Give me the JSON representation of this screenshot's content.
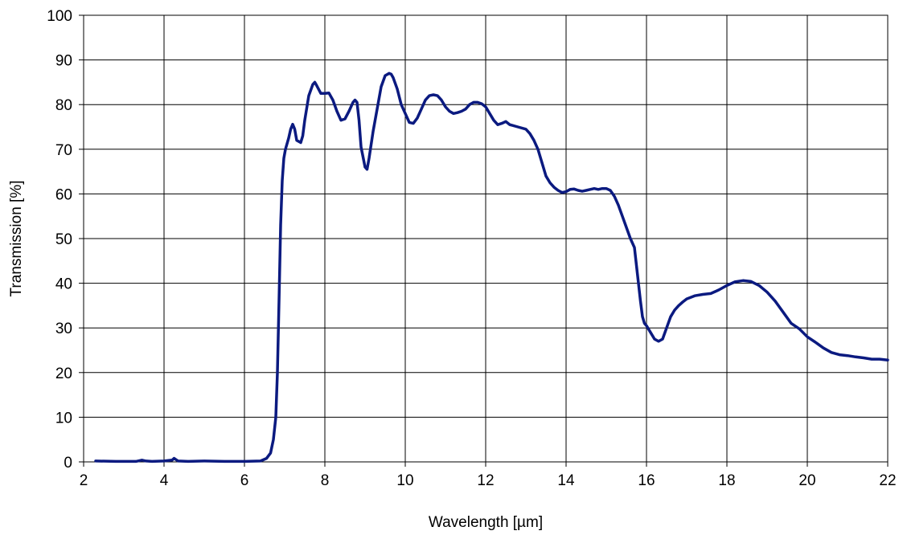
{
  "chart_data": {
    "type": "line",
    "title": "",
    "xlabel": "Wavelength [µm]",
    "ylabel": "Transmission [%]",
    "xlim": [
      2,
      22
    ],
    "ylim": [
      0,
      100
    ],
    "xticks": [
      2,
      4,
      6,
      8,
      10,
      12,
      14,
      16,
      18,
      20,
      22
    ],
    "yticks": [
      0,
      10,
      20,
      30,
      40,
      50,
      60,
      70,
      80,
      90,
      100
    ],
    "grid": true,
    "legend": "none",
    "line_color": "#0b1a80",
    "series": [
      {
        "x": [
          2.3,
          2.8,
          3.3,
          3.45,
          3.55,
          3.7,
          4.0,
          4.2,
          4.25,
          4.35,
          4.6,
          5.0,
          5.5,
          6.0,
          6.4,
          6.55,
          6.65,
          6.72,
          6.78,
          6.82,
          6.86,
          6.9,
          6.94,
          6.98,
          7.02,
          7.1,
          7.15,
          7.2,
          7.25,
          7.3,
          7.4,
          7.45,
          7.5,
          7.6,
          7.7,
          7.75,
          7.8,
          7.9,
          8.0,
          8.1,
          8.2,
          8.3,
          8.4,
          8.5,
          8.6,
          8.7,
          8.75,
          8.8,
          8.85,
          8.9,
          9.0,
          9.05,
          9.1,
          9.2,
          9.3,
          9.4,
          9.5,
          9.6,
          9.65,
          9.7,
          9.8,
          9.9,
          10.0,
          10.1,
          10.2,
          10.3,
          10.4,
          10.5,
          10.6,
          10.7,
          10.8,
          10.9,
          11.0,
          11.1,
          11.2,
          11.3,
          11.4,
          11.5,
          11.6,
          11.7,
          11.8,
          11.9,
          12.0,
          12.1,
          12.2,
          12.3,
          12.4,
          12.5,
          12.6,
          12.8,
          13.0,
          13.1,
          13.2,
          13.3,
          13.4,
          13.5,
          13.6,
          13.7,
          13.8,
          13.9,
          14.0,
          14.1,
          14.2,
          14.3,
          14.4,
          14.5,
          14.6,
          14.7,
          14.8,
          14.9,
          15.0,
          15.1,
          15.2,
          15.3,
          15.4,
          15.5,
          15.6,
          15.7,
          15.8,
          15.85,
          15.9,
          15.95,
          16.0,
          16.1,
          16.2,
          16.3,
          16.4,
          16.5,
          16.6,
          16.7,
          16.8,
          16.9,
          17.0,
          17.2,
          17.4,
          17.6,
          17.8,
          18.0,
          18.2,
          18.4,
          18.6,
          18.8,
          19.0,
          19.2,
          19.4,
          19.6,
          19.8,
          20.0,
          20.2,
          20.4,
          20.6,
          20.8,
          21.0,
          21.2,
          21.4,
          21.6,
          21.8,
          22.0
        ],
        "values": [
          0.2,
          0.1,
          0.1,
          0.4,
          0.2,
          0.1,
          0.2,
          0.4,
          0.8,
          0.2,
          0.1,
          0.2,
          0.1,
          0.1,
          0.2,
          0.8,
          2.0,
          5.0,
          10.0,
          20.0,
          36.0,
          53.0,
          63.0,
          68.0,
          70.0,
          72.5,
          74.5,
          75.6,
          74.5,
          72.0,
          71.5,
          73.0,
          76.5,
          82.0,
          84.5,
          85.0,
          84.2,
          82.5,
          82.5,
          82.6,
          81.0,
          78.5,
          76.5,
          76.8,
          78.5,
          80.5,
          81.0,
          80.5,
          76.5,
          70.5,
          66.0,
          65.5,
          68.0,
          74.0,
          79.0,
          84.0,
          86.5,
          87.0,
          86.8,
          86.0,
          83.5,
          80.0,
          78.0,
          76.0,
          75.8,
          77.0,
          79.0,
          81.0,
          82.0,
          82.2,
          82.0,
          81.0,
          79.5,
          78.5,
          78.0,
          78.2,
          78.5,
          79.0,
          80.0,
          80.5,
          80.5,
          80.2,
          79.5,
          78.0,
          76.5,
          75.5,
          75.8,
          76.2,
          75.5,
          75.0,
          74.5,
          73.5,
          72.0,
          70.0,
          67.0,
          64.0,
          62.5,
          61.5,
          60.8,
          60.3,
          60.5,
          61.0,
          61.1,
          60.8,
          60.6,
          60.8,
          61.0,
          61.2,
          61.0,
          61.2,
          61.2,
          60.8,
          59.5,
          57.5,
          55.0,
          52.5,
          50.0,
          48.0,
          40.0,
          36.0,
          32.5,
          31.0,
          30.5,
          29.0,
          27.5,
          27.0,
          27.5,
          30.0,
          32.5,
          34.0,
          35.0,
          35.8,
          36.5,
          37.2,
          37.5,
          37.7,
          38.5,
          39.5,
          40.3,
          40.6,
          40.4,
          39.5,
          38.0,
          36.0,
          33.5,
          31.0,
          29.8,
          28.0,
          26.8,
          25.5,
          24.5,
          24.0,
          23.8,
          23.5,
          23.3,
          23.0,
          23.0,
          22.8
        ]
      }
    ]
  }
}
